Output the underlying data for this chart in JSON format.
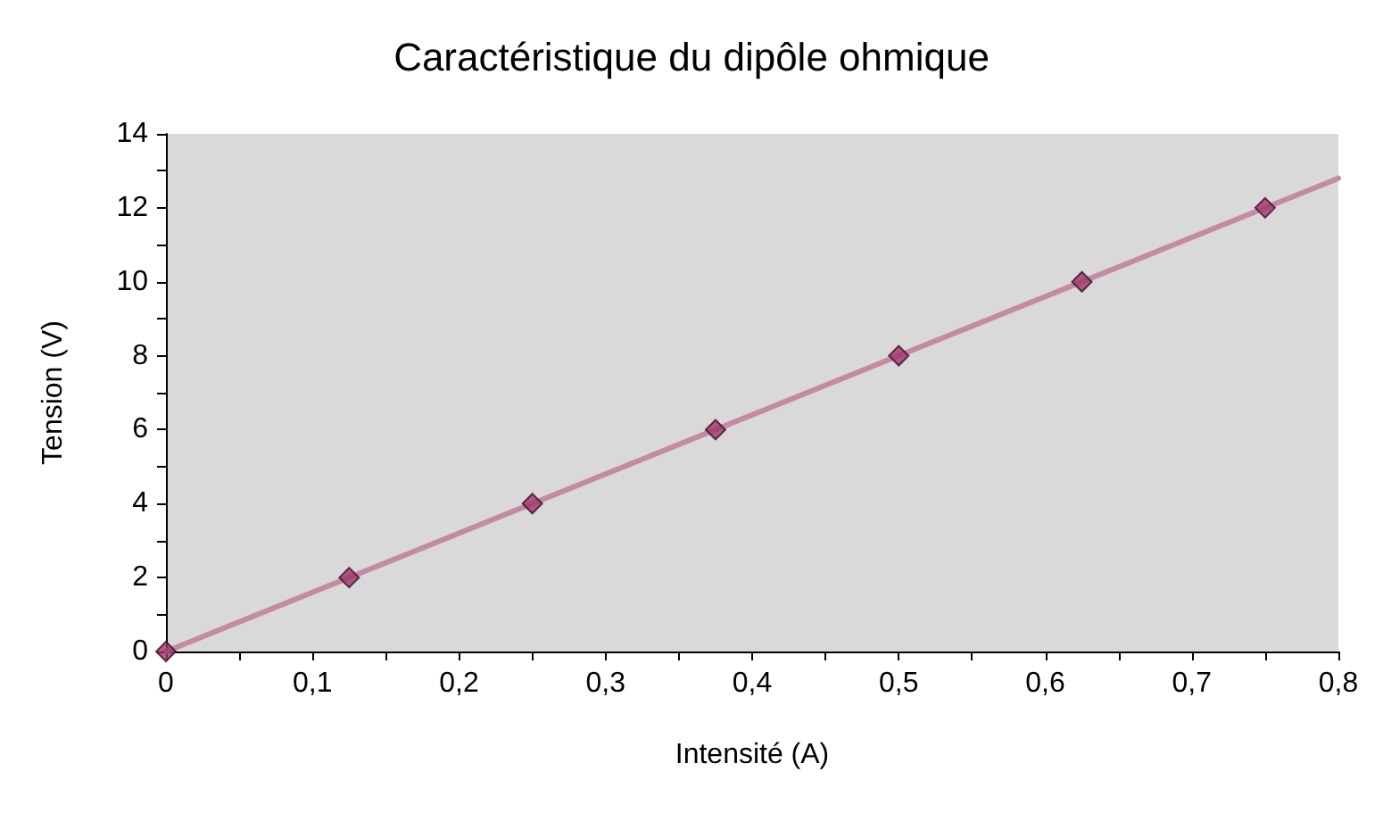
{
  "chart_data": {
    "type": "scatter",
    "title": "Caractéristique du dipôle ohmique",
    "xlabel": "Intensité (A)",
    "ylabel": "Tension (V)",
    "xlim": [
      0,
      0.8
    ],
    "ylim": [
      0,
      14
    ],
    "xticks": [
      0,
      {
        "value": 0.05,
        "label": null
      },
      {
        "value": 0.1,
        "label": "0,1"
      },
      {
        "value": 0.15,
        "label": null
      },
      {
        "value": 0.2,
        "label": "0,2"
      },
      {
        "value": 0.25,
        "label": null
      },
      {
        "value": 0.3,
        "label": "0,3"
      },
      {
        "value": 0.35,
        "label": null
      },
      {
        "value": 0.4,
        "label": "0,4"
      },
      {
        "value": 0.45,
        "label": null
      },
      {
        "value": 0.5,
        "label": "0,5"
      },
      {
        "value": 0.55,
        "label": null
      },
      {
        "value": 0.6,
        "label": "0,6"
      },
      {
        "value": 0.65,
        "label": null
      },
      {
        "value": 0.7,
        "label": "0,7"
      },
      {
        "value": 0.75,
        "label": null
      },
      {
        "value": 0.8,
        "label": "0,8"
      }
    ],
    "yticks": [
      0,
      {
        "value": 1,
        "label": null
      },
      2,
      {
        "value": 3,
        "label": null
      },
      4,
      {
        "value": 5,
        "label": null
      },
      6,
      {
        "value": 7,
        "label": null
      },
      8,
      {
        "value": 9,
        "label": null
      },
      10,
      {
        "value": 11,
        "label": null
      },
      12,
      {
        "value": 13,
        "label": null
      },
      14
    ],
    "grid": false,
    "series": [
      {
        "type": "line",
        "color": "#c48aa4",
        "marker": "none",
        "x": [
          0,
          0.8
        ],
        "values": [
          0,
          12.8
        ]
      },
      {
        "color": "#a0346a",
        "marker": "diamond",
        "x": [
          0,
          0.125,
          0.25,
          0.375,
          0.5,
          0.625,
          0.75
        ],
        "values": [
          0,
          2,
          4,
          6,
          8,
          10,
          12
        ]
      }
    ]
  }
}
